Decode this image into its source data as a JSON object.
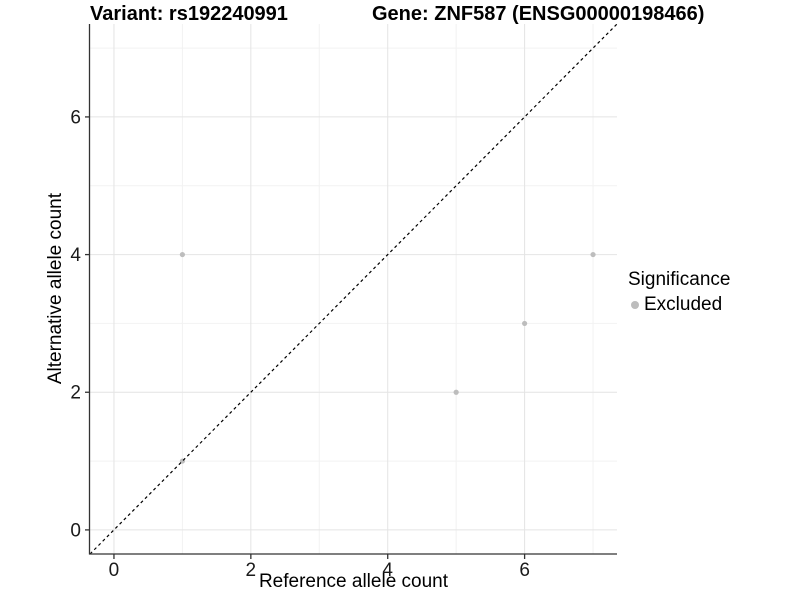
{
  "colors": {
    "background": "#ffffff",
    "grid_major": "#e4e4e4",
    "grid_minor": "#f2f2f2",
    "axis_line": "#333333",
    "tick_text": "#1a1a1a",
    "point": "#bdbdbd",
    "title_text": "#000000"
  },
  "chart_data": {
    "type": "scatter",
    "title_left": "Variant: rs192240991",
    "title_right": "Gene: ZNF587 (ENSG00000198466)",
    "xlabel": "Reference allele count",
    "ylabel": "Alternative allele count",
    "xlim": [
      -0.35,
      7.35
    ],
    "ylim": [
      -0.35,
      7.35
    ],
    "x_ticks": [
      0,
      2,
      4,
      6
    ],
    "y_ticks": [
      0,
      2,
      4,
      6
    ],
    "x_minor_ticks": [
      1,
      3,
      5,
      7
    ],
    "y_minor_ticks": [
      1,
      3,
      5,
      7
    ],
    "grid": "major+minor",
    "series": [
      {
        "name": "Excluded",
        "color": "#bdbdbd",
        "point_radius": 2.6,
        "points": [
          [
            1,
            1
          ],
          [
            1,
            4
          ],
          [
            5,
            2
          ],
          [
            6,
            3
          ],
          [
            7,
            4
          ]
        ]
      }
    ],
    "reference_line": {
      "type": "identity y=x",
      "style": "dashed",
      "color": "#000000"
    },
    "legend": {
      "position": "right",
      "title": "Significance",
      "items": [
        {
          "label": "Excluded",
          "color": "#bdbdbd"
        }
      ]
    }
  }
}
